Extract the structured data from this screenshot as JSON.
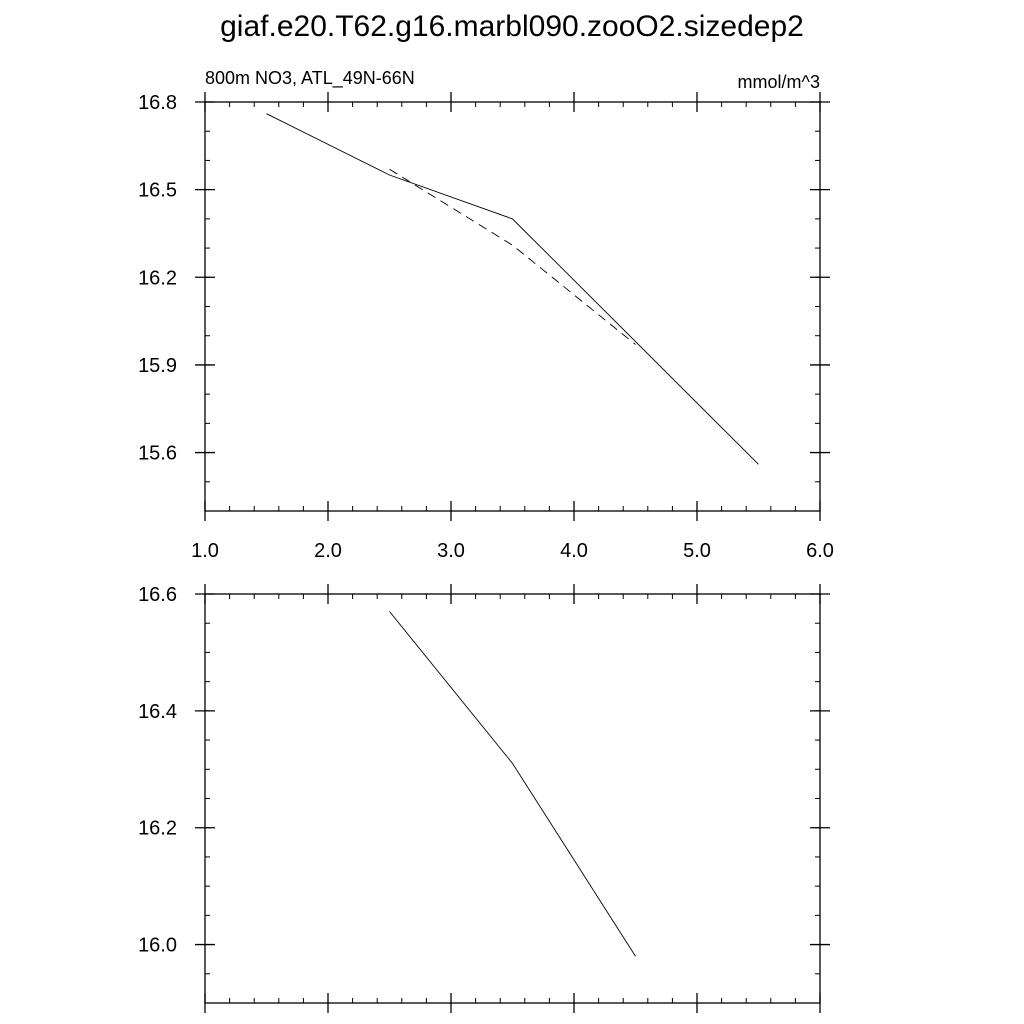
{
  "page": {
    "title": "giaf.e20.T62.g16.marbl090.zooO2.sizedep2"
  },
  "chart_data": [
    {
      "type": "line",
      "left_label": "800m NO3, ATL_49N-66N",
      "right_label": "mmol/m^3",
      "xlim": [
        1.0,
        6.0
      ],
      "ylim": [
        15.4,
        16.8
      ],
      "x_ticks": [
        "1.0",
        "2.0",
        "3.0",
        "4.0",
        "5.0",
        "6.0"
      ],
      "y_ticks": [
        "15.6",
        "15.9",
        "16.2",
        "16.5",
        "16.8"
      ],
      "grid": false,
      "series": [
        {
          "style": "solid",
          "x": [
            1.5,
            2.5,
            3.5,
            4.5,
            5.5
          ],
          "y": [
            16.76,
            16.55,
            16.4,
            15.98,
            15.56
          ]
        },
        {
          "style": "dashed",
          "x": [
            2.5,
            3.5,
            4.5
          ],
          "y": [
            16.57,
            16.31,
            15.97
          ]
        }
      ]
    },
    {
      "type": "line",
      "xlim": [
        1.0,
        6.0
      ],
      "ylim": [
        15.9,
        16.6
      ],
      "y_ticks": [
        "16.0",
        "16.2",
        "16.4",
        "16.6"
      ],
      "grid": false,
      "series": [
        {
          "style": "solid",
          "x": [
            2.5,
            3.5,
            4.5
          ],
          "y": [
            16.57,
            16.31,
            15.98
          ]
        }
      ]
    }
  ]
}
